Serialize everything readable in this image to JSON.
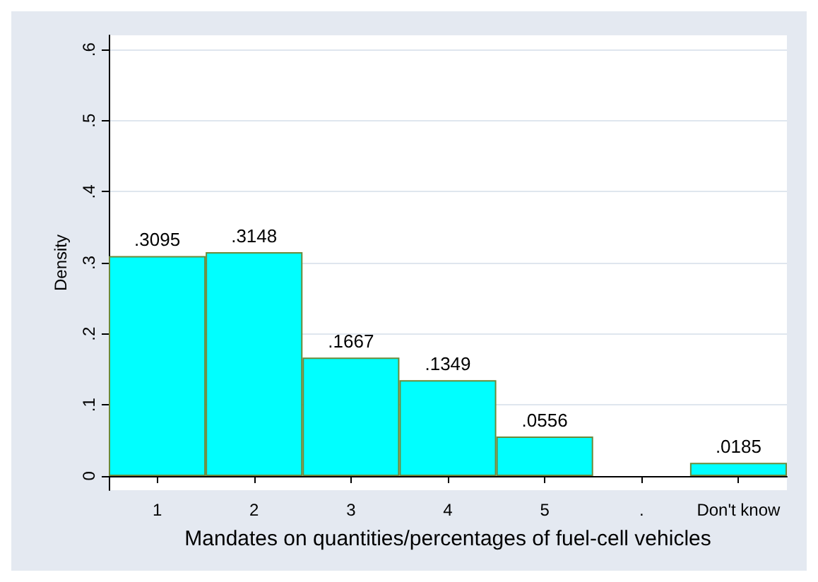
{
  "chart_data": {
    "type": "bar",
    "xlabel": "Mandates on quantities/percentages of fuel-cell vehicles",
    "ylabel": "Density",
    "categories": [
      "1",
      "2",
      "3",
      "4",
      "5",
      ".",
      "Don't know"
    ],
    "values": [
      0.3095,
      0.3148,
      0.1667,
      0.1349,
      0.0556,
      null,
      0.0185
    ],
    "value_labels": [
      ".3095",
      ".3148",
      ".1667",
      ".1349",
      ".0556",
      null,
      ".0185"
    ],
    "color": "#00ffff",
    "ylim": [
      -0.02,
      0.62
    ],
    "yticks": [
      0,
      {
        "value": 0.1,
        "label": ".1"
      },
      {
        "value": 0.2,
        "label": ".2"
      },
      {
        "value": 0.3,
        "label": ".3"
      },
      {
        "value": 0.4,
        "label": ".4"
      },
      {
        "value": 0.5,
        "label": ".5"
      },
      {
        "value": 0.6,
        "label": ".6"
      }
    ],
    "grid": "y"
  }
}
